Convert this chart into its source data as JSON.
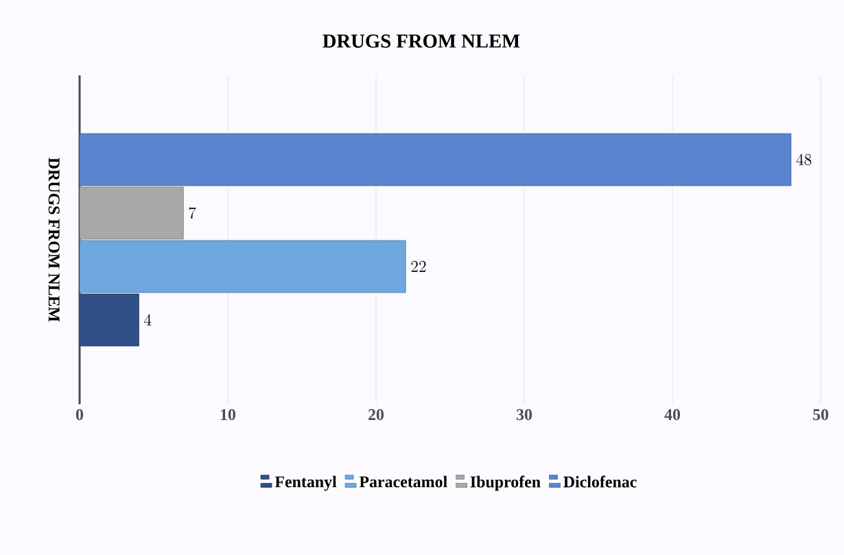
{
  "chart_data": {
    "type": "bar",
    "orientation": "horizontal",
    "title": "DRUGS FROM NLEM",
    "ylabel": "DRUGS FROM NLEM",
    "categories": [
      null
    ],
    "series": [
      {
        "name": "Fentanyl",
        "color": "#2f4f86",
        "values": [
          4
        ]
      },
      {
        "name": "Paracetamol",
        "color": "#6fa8e0",
        "values": [
          22
        ]
      },
      {
        "name": "Ibuprofen",
        "color": "#a8a8a8",
        "values": [
          7
        ]
      },
      {
        "name": "Diclofenac",
        "color": "#5b84cf",
        "values": [
          48
        ]
      }
    ],
    "xlim": [
      0,
      50
    ],
    "xticks": [
      0,
      10,
      20,
      30,
      40,
      50
    ],
    "grid": "x",
    "legend": "bottom",
    "data_labels": true
  }
}
